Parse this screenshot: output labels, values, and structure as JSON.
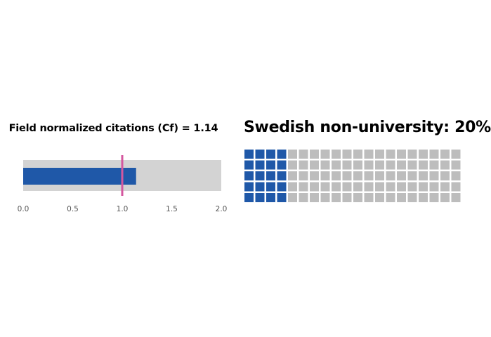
{
  "chart_data": [
    {
      "type": "bullet",
      "title": "Field normalized citations (Cf) = 1.14",
      "value": 1.14,
      "target": 1.0,
      "xlim": [
        0,
        2
      ],
      "ticks": [
        "0.0",
        "0.5",
        "1.0",
        "1.5",
        "2.0"
      ],
      "tick_values": [
        0,
        0.5,
        1.0,
        1.5,
        2.0
      ],
      "colors": {
        "background": "#d3d3d3",
        "bar": "#1f58a8",
        "target": "#d4579f",
        "tick_text": "#555555"
      }
    },
    {
      "type": "waffle",
      "title": "Swedish non-university: 20%",
      "rows": 5,
      "columns": 20,
      "filled_columns": 4,
      "percent": 20,
      "colors": {
        "filled": "#1f58a8",
        "empty": "#bdbdbd"
      }
    }
  ]
}
